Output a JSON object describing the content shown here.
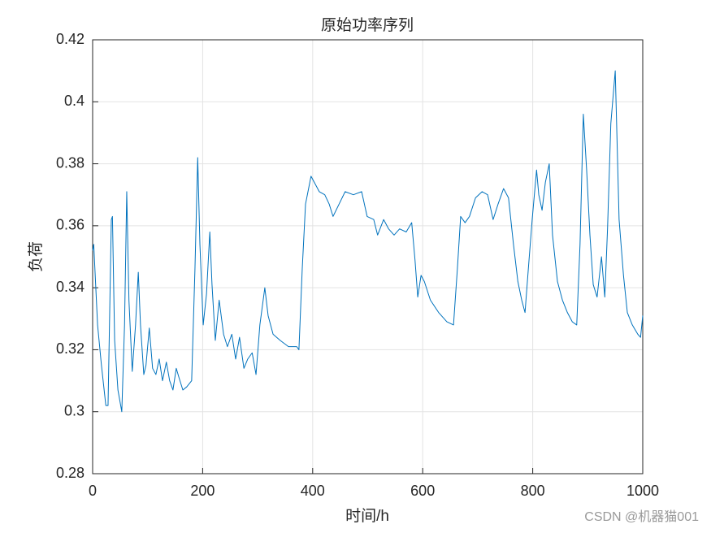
{
  "chart_data": {
    "type": "line",
    "title": "原始功率序列",
    "x_label": "时间/h",
    "y_label": "负荷",
    "watermark": "CSDN @机器猫001",
    "x": [
      0,
      2,
      9,
      16,
      24,
      28,
      34,
      36,
      40,
      46,
      53,
      58,
      62,
      66,
      72,
      78,
      83,
      87,
      93,
      97,
      103,
      109,
      115,
      121,
      127,
      134,
      140,
      146,
      152,
      157,
      164,
      171,
      180,
      186,
      191,
      195,
      201,
      207,
      213,
      217,
      223,
      230,
      238,
      245,
      253,
      260,
      267,
      275,
      282,
      290,
      297,
      304,
      313,
      319,
      328,
      341,
      356,
      371,
      375,
      381,
      387,
      397,
      403,
      412,
      422,
      430,
      437,
      448,
      459,
      474,
      489,
      499,
      511,
      518,
      529,
      538,
      548,
      558,
      570,
      580,
      586,
      591,
      597,
      603,
      614,
      629,
      644,
      656,
      663,
      669,
      677,
      685,
      696,
      708,
      718,
      728,
      737,
      747,
      756,
      765,
      773,
      780,
      786,
      792,
      799,
      807,
      811,
      817,
      823,
      830,
      836,
      845,
      854,
      863,
      872,
      880,
      886,
      892,
      898,
      904,
      910,
      917,
      925,
      931,
      936,
      942,
      950,
      957,
      965,
      972,
      981,
      991,
      996,
      1000
    ],
    "series": [
      {
        "name": "负荷",
        "color": "#0072bd",
        "values": [
          0.352,
          0.354,
          0.328,
          0.315,
          0.302,
          0.302,
          0.362,
          0.363,
          0.323,
          0.307,
          0.3,
          0.328,
          0.371,
          0.336,
          0.313,
          0.328,
          0.345,
          0.328,
          0.312,
          0.315,
          0.327,
          0.314,
          0.312,
          0.317,
          0.31,
          0.316,
          0.31,
          0.307,
          0.314,
          0.311,
          0.307,
          0.308,
          0.31,
          0.346,
          0.382,
          0.354,
          0.328,
          0.338,
          0.358,
          0.341,
          0.323,
          0.336,
          0.325,
          0.321,
          0.325,
          0.317,
          0.324,
          0.314,
          0.317,
          0.319,
          0.312,
          0.328,
          0.34,
          0.331,
          0.325,
          0.323,
          0.321,
          0.321,
          0.32,
          0.346,
          0.367,
          0.376,
          0.374,
          0.371,
          0.37,
          0.367,
          0.363,
          0.367,
          0.371,
          0.37,
          0.371,
          0.363,
          0.362,
          0.357,
          0.362,
          0.359,
          0.357,
          0.359,
          0.358,
          0.361,
          0.349,
          0.337,
          0.344,
          0.342,
          0.336,
          0.332,
          0.329,
          0.328,
          0.346,
          0.363,
          0.361,
          0.363,
          0.369,
          0.371,
          0.37,
          0.362,
          0.367,
          0.372,
          0.369,
          0.354,
          0.342,
          0.336,
          0.332,
          0.346,
          0.362,
          0.378,
          0.37,
          0.365,
          0.374,
          0.38,
          0.357,
          0.342,
          0.336,
          0.332,
          0.329,
          0.328,
          0.354,
          0.396,
          0.378,
          0.357,
          0.341,
          0.337,
          0.35,
          0.337,
          0.359,
          0.393,
          0.41,
          0.362,
          0.344,
          0.332,
          0.328,
          0.325,
          0.324,
          0.331
        ]
      }
    ],
    "xlim": [
      0,
      1000
    ],
    "xticks": [
      0,
      200,
      400,
      600,
      800,
      1000
    ],
    "ylim": [
      0.28,
      0.42
    ],
    "yticks": [
      0.28,
      0.3,
      0.32,
      0.34,
      0.36,
      0.38,
      0.4,
      0.42
    ],
    "grid": true
  }
}
